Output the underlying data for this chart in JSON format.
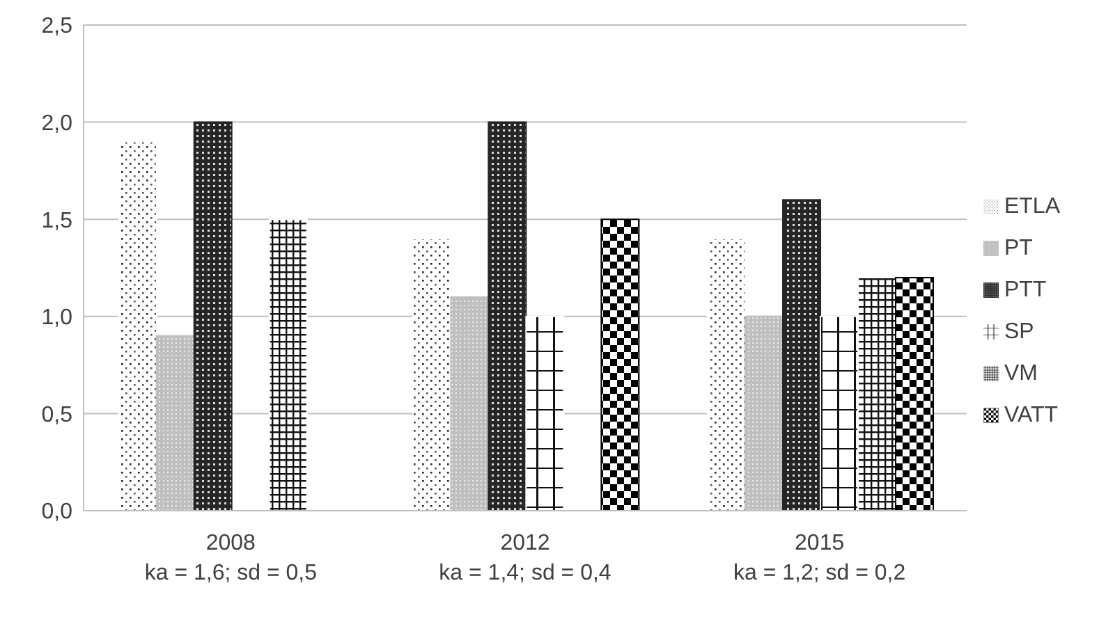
{
  "chart_data": {
    "type": "bar",
    "categories": [
      "2008\nka = 1,6; sd = 0,5",
      "2012\nka = 1,4; sd = 0,4",
      "2015\nka = 1,2; sd = 0,2"
    ],
    "series": [
      {
        "name": "ETLA",
        "color": "#ffffff",
        "values": [
          1.9,
          1.4,
          1.4
        ]
      },
      {
        "name": "PT",
        "color": "#bfbfbf",
        "values": [
          0.9,
          1.1,
          1.0
        ]
      },
      {
        "name": "PTT",
        "color": "#262626",
        "values": [
          2.0,
          2.0,
          1.6
        ]
      },
      {
        "name": "SP",
        "color": "#ffffff",
        "values": [
          null,
          1.0,
          1.0
        ]
      },
      {
        "name": "VM",
        "color": "#ffffff",
        "values": [
          1.5,
          null,
          1.2
        ]
      },
      {
        "name": "VATT",
        "color": "#000000",
        "values": [
          null,
          1.5,
          1.2
        ]
      }
    ],
    "ylim": [
      0,
      2.5
    ],
    "yticks": [
      {
        "value": 0,
        "label": "0,0"
      },
      {
        "value": 0.5,
        "label": "0,5"
      },
      {
        "value": 1,
        "label": "1,0"
      },
      {
        "value": 1.5,
        "label": "1,5"
      },
      {
        "value": 2,
        "label": "2,0"
      },
      {
        "value": 2.5,
        "label": "2,5"
      }
    ],
    "grid": "y",
    "legend": "right"
  }
}
